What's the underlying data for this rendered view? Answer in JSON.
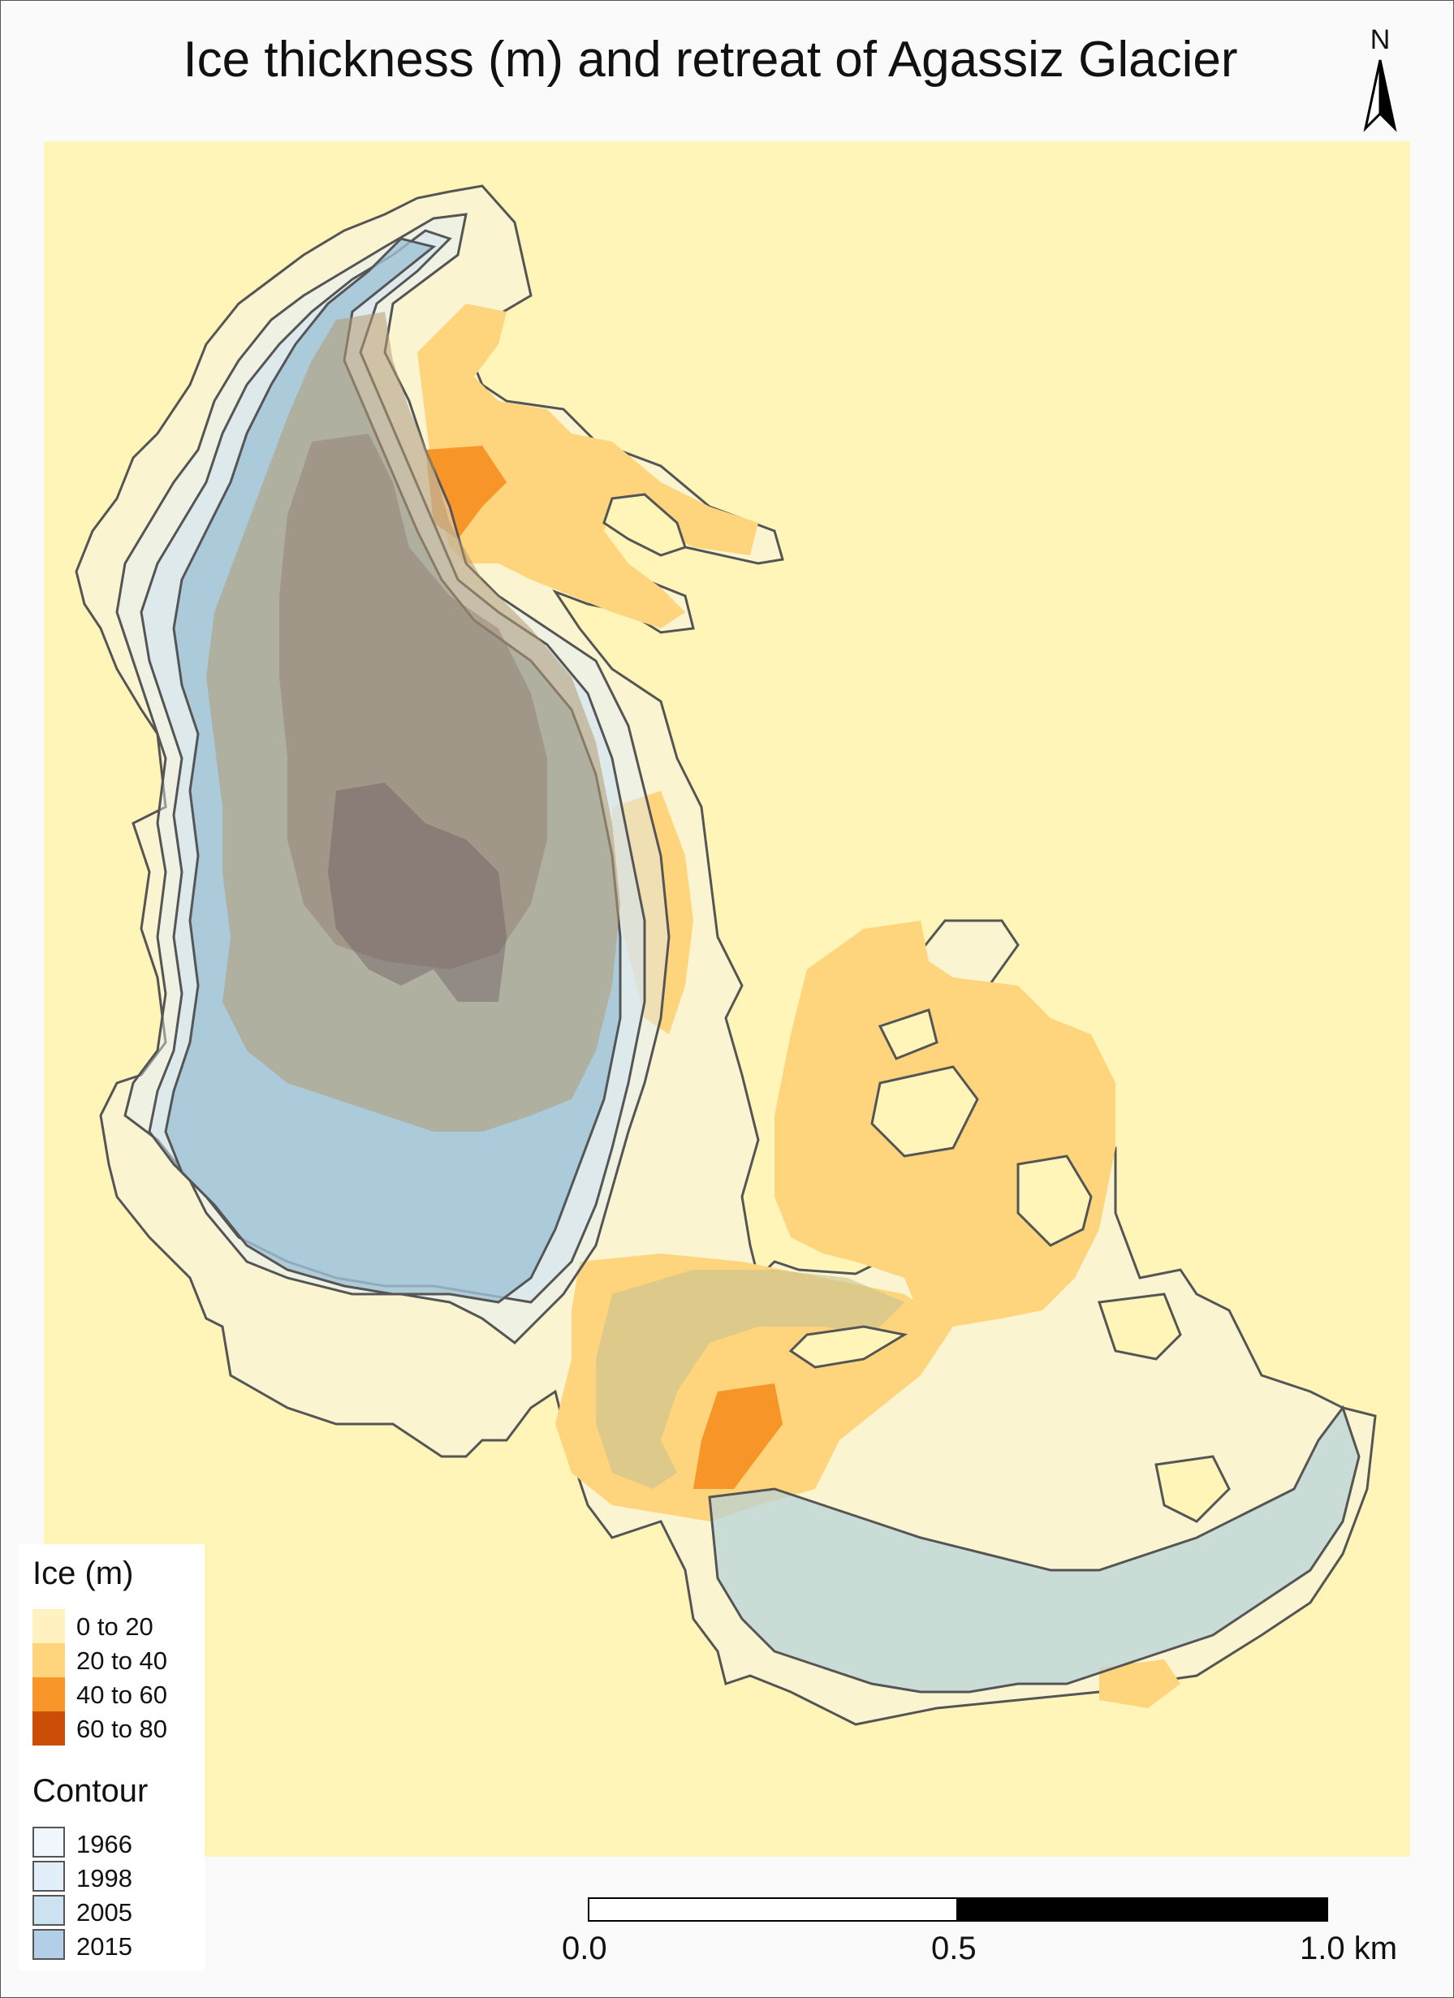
{
  "title": "Ice thickness (m) and retreat of Agassiz Glacier",
  "north_arrow": {
    "label": "N"
  },
  "colors": {
    "background": "#fff5b9",
    "ice_0_20": "#fff1c0",
    "ice_20_40": "#fed47c",
    "ice_40_60": "#f79528",
    "ice_60_80": "#cc4d06",
    "contour_1966": "#f0f6fb",
    "contour_1998": "#e2eef8",
    "contour_2005": "#cde2f1",
    "contour_2015": "#b2cfe7",
    "contour_line": "#555555"
  },
  "legend": {
    "ice": {
      "title": "Ice (m)",
      "items": [
        {
          "label": "0 to 20",
          "color": "#fff1c0"
        },
        {
          "label": "20 to 40",
          "color": "#fed47c"
        },
        {
          "label": "40 to 60",
          "color": "#f79528"
        },
        {
          "label": "60 to 80",
          "color": "#cc4d06"
        }
      ]
    },
    "contour": {
      "title": "Contour",
      "items": [
        {
          "label": "1966",
          "color": "#f0f6fb"
        },
        {
          "label": "1998",
          "color": "#e2eef8"
        },
        {
          "label": "2005",
          "color": "#cde2f1"
        },
        {
          "label": "2015",
          "color": "#b2cfe7"
        }
      ]
    }
  },
  "scale_bar": {
    "labels": [
      "0.0",
      "0.5",
      "1.0 km"
    ]
  }
}
